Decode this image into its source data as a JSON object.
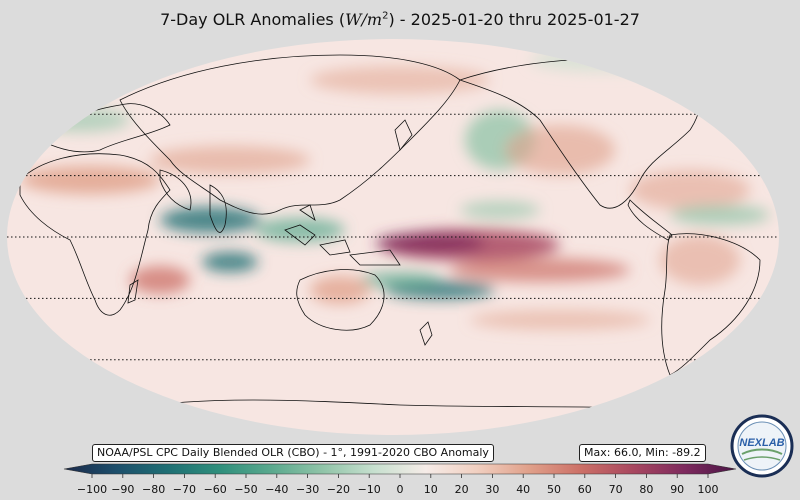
{
  "title": {
    "prefix": "7-Day OLR Anomalies (",
    "unit_var": "W/m",
    "unit_exp": "2",
    "suffix": ") - 2025-01-20 thru 2025-01-27"
  },
  "source_label": "NOAA/PSL CPC Daily Blended OLR (CBO) - 1°, 1991-2020 CBO Anomaly",
  "stats_label": "Max: 66.0,  Min: -89.2",
  "logo_text": "NEXLAB",
  "colorbar": {
    "min": -100,
    "max": 100,
    "ticks": [
      -100,
      -90,
      -80,
      -70,
      -60,
      -50,
      -40,
      -30,
      -20,
      -10,
      0,
      10,
      20,
      30,
      40,
      50,
      60,
      70,
      80,
      90,
      100
    ],
    "tick_labels": [
      "−100",
      "−90",
      "−80",
      "−70",
      "−60",
      "−50",
      "−40",
      "−30",
      "−20",
      "−10",
      "0",
      "10",
      "20",
      "30",
      "40",
      "50",
      "60",
      "70",
      "80",
      "90",
      "100"
    ],
    "colors": [
      "#1b2a4a",
      "#1d4e6b",
      "#1f6f74",
      "#2f8f7c",
      "#5aa98e",
      "#90c4a8",
      "#c7e0cf",
      "#f6ece8",
      "#f1cfc0",
      "#e0a08a",
      "#cc7067",
      "#a94860",
      "#7e2a5e",
      "#4a1545"
    ]
  },
  "map": {
    "ocean_color": "#f7e6e2",
    "latitude_lines": [
      60,
      30,
      0,
      -30,
      -60
    ]
  }
}
